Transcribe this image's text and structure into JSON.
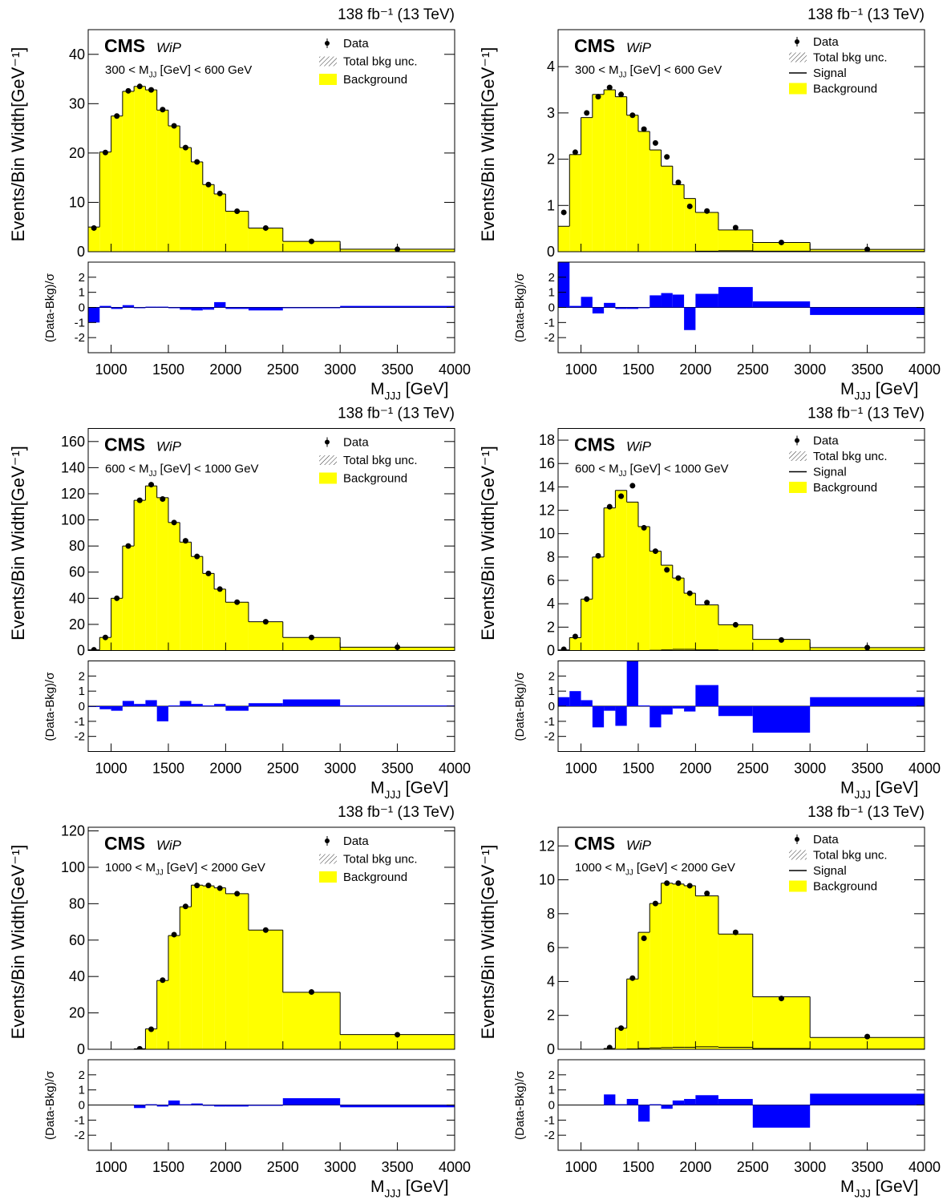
{
  "chart_data": [
    {
      "type": "histogram",
      "title": "CMS",
      "subtitle": "WiP",
      "lumi": "138 fb⁻¹ (13 TeV)",
      "region": {
        "prefix": "300 < M",
        "subscript": "JJ",
        "suffix": " [GeV] < 600 GeV"
      },
      "x_label": {
        "prefix": "M",
        "subscript": "JJJ",
        "suffix": " [GeV]"
      },
      "y_label": "Events/Bin Width[GeV⁻¹]",
      "bins": [
        800,
        900,
        1000,
        1100,
        1200,
        1300,
        1400,
        1500,
        1600,
        1700,
        1800,
        1900,
        2000,
        2200,
        2500,
        3000,
        4000
      ],
      "xlim": [
        800,
        4000
      ],
      "xticks": [
        1000,
        1500,
        2000,
        2500,
        3000,
        3500,
        4000
      ],
      "ylim": [
        0,
        45
      ],
      "yticks": [
        0,
        10,
        20,
        30,
        40
      ],
      "unc_label": "Total bkg unc.",
      "series": [
        {
          "name": "Data",
          "color": "#000000",
          "values": [
            4.8,
            20.1,
            27.5,
            32.6,
            33.5,
            32.8,
            28.8,
            25.5,
            21.1,
            18.2,
            13.6,
            11.8,
            8.2,
            4.8,
            2.1,
            0.5
          ]
        },
        {
          "name": "Background",
          "color": "#ffff00",
          "values": [
            5.0,
            20.2,
            27.5,
            32.5,
            33.5,
            32.8,
            28.7,
            25.5,
            21.1,
            18.2,
            13.6,
            11.7,
            8.2,
            4.8,
            2.1,
            0.5
          ]
        }
      ],
      "pull": {
        "y_label": "(Data-Bkg)/σ",
        "color": "#0000ff",
        "ylim": [
          -3,
          3
        ],
        "yticks": [
          -2,
          -1,
          0,
          1,
          2
        ],
        "values": [
          -1.0,
          0.1,
          -0.1,
          0.15,
          -0.05,
          0.05,
          0.05,
          0.0,
          -0.15,
          -0.2,
          -0.15,
          0.35,
          -0.1,
          -0.2,
          -0.05,
          0.1
        ]
      }
    },
    {
      "type": "histogram",
      "title": "CMS",
      "subtitle": "WiP",
      "lumi": "138 fb⁻¹ (13 TeV)",
      "region": {
        "prefix": "300 < M",
        "subscript": "JJ",
        "suffix": " [GeV] < 600 GeV"
      },
      "x_label": {
        "prefix": "M",
        "subscript": "JJJ",
        "suffix": " [GeV]"
      },
      "y_label": "Events/Bin Width[GeV⁻¹]",
      "bins": [
        800,
        900,
        1000,
        1100,
        1200,
        1300,
        1400,
        1500,
        1600,
        1700,
        1800,
        1900,
        2000,
        2200,
        2500,
        3000,
        4000
      ],
      "xlim": [
        800,
        4000
      ],
      "xticks": [
        1000,
        1500,
        2000,
        2500,
        3000,
        3500,
        4000
      ],
      "ylim": [
        0,
        4.8
      ],
      "yticks": [
        0,
        1,
        2,
        3,
        4
      ],
      "unc_label": "Total bkg unc.",
      "series": [
        {
          "name": "Data",
          "color": "#000000",
          "values": [
            0.85,
            2.15,
            3.0,
            3.35,
            3.55,
            3.4,
            2.95,
            2.65,
            2.35,
            2.05,
            1.5,
            0.98,
            0.88,
            0.52,
            0.2,
            0.05
          ]
        },
        {
          "name": "Background",
          "color": "#ffff00",
          "values": [
            0.55,
            2.1,
            2.9,
            3.4,
            3.5,
            3.35,
            2.95,
            2.6,
            2.2,
            1.85,
            1.45,
            1.15,
            0.85,
            0.47,
            0.2,
            0.05
          ]
        },
        {
          "name": "Signal",
          "color": "#000000",
          "values": [
            0,
            0,
            0,
            0,
            0,
            0,
            0,
            0,
            0,
            0,
            0,
            0,
            0.01,
            0.02,
            0.01,
            0.005
          ]
        }
      ],
      "pull": {
        "y_label": "(Data-Bkg)/σ",
        "color": "#0000ff",
        "ylim": [
          -3,
          3
        ],
        "yticks": [
          -2,
          -1,
          0,
          1,
          2
        ],
        "values": [
          3.5,
          0.1,
          0.7,
          -0.4,
          0.3,
          -0.1,
          -0.1,
          0.0,
          0.8,
          0.95,
          0.85,
          -1.5,
          0.9,
          1.35,
          0.4,
          -0.5
        ]
      }
    },
    {
      "type": "histogram",
      "title": "CMS",
      "subtitle": "WiP",
      "lumi": "138 fb⁻¹ (13 TeV)",
      "region": {
        "prefix": "600 < M",
        "subscript": "JJ",
        "suffix": " [GeV] < 1000 GeV"
      },
      "x_label": {
        "prefix": "M",
        "subscript": "JJJ",
        "suffix": " [GeV]"
      },
      "y_label": "Events/Bin Width[GeV⁻¹]",
      "bins": [
        800,
        900,
        1000,
        1100,
        1200,
        1300,
        1400,
        1500,
        1600,
        1700,
        1800,
        1900,
        2000,
        2200,
        2500,
        3000,
        4000
      ],
      "xlim": [
        800,
        4000
      ],
      "xticks": [
        1000,
        1500,
        2000,
        2500,
        3000,
        3500,
        4000
      ],
      "ylim": [
        0,
        170
      ],
      "yticks": [
        0,
        20,
        40,
        60,
        80,
        100,
        120,
        140,
        160
      ],
      "unc_label": "Total bkg unc.",
      "series": [
        {
          "name": "Data",
          "color": "#000000",
          "values": [
            0.5,
            10,
            40,
            80,
            115,
            127,
            116,
            98,
            84,
            72,
            59,
            47,
            37,
            22,
            10,
            2.5
          ]
        },
        {
          "name": "Background",
          "color": "#ffff00",
          "values": [
            0.5,
            10,
            40,
            80,
            115,
            126,
            117,
            98,
            83,
            72,
            59,
            47,
            37,
            22,
            10,
            2.5
          ]
        }
      ],
      "pull": {
        "y_label": "(Data-Bkg)/σ",
        "color": "#0000ff",
        "ylim": [
          -3,
          3
        ],
        "yticks": [
          -2,
          -1,
          0,
          1,
          2
        ],
        "values": [
          0.0,
          -0.2,
          -0.3,
          0.35,
          0.15,
          0.4,
          -1.0,
          0.05,
          0.35,
          0.15,
          0.05,
          0.15,
          -0.3,
          0.2,
          0.45,
          0.05
        ]
      }
    },
    {
      "type": "histogram",
      "title": "CMS",
      "subtitle": "WiP",
      "lumi": "138 fb⁻¹ (13 TeV)",
      "region": {
        "prefix": "600 < M",
        "subscript": "JJ",
        "suffix": " [GeV] < 1000 GeV"
      },
      "x_label": {
        "prefix": "M",
        "subscript": "JJJ",
        "suffix": " [GeV]"
      },
      "y_label": "Events/Bin Width[GeV⁻¹]",
      "bins": [
        800,
        900,
        1000,
        1100,
        1200,
        1300,
        1400,
        1500,
        1600,
        1700,
        1800,
        1900,
        2000,
        2200,
        2500,
        3000,
        4000
      ],
      "xlim": [
        800,
        4000
      ],
      "xticks": [
        1000,
        1500,
        2000,
        2500,
        3000,
        3500,
        4000
      ],
      "ylim": [
        0,
        19
      ],
      "yticks": [
        0,
        2,
        4,
        6,
        8,
        10,
        12,
        14,
        16,
        18
      ],
      "unc_label": "Total bkg unc.",
      "series": [
        {
          "name": "Data",
          "color": "#000000",
          "values": [
            0.1,
            1.2,
            4.4,
            8.1,
            12.3,
            13.2,
            14.1,
            10.5,
            8.5,
            6.9,
            6.2,
            4.9,
            4.1,
            2.2,
            0.9,
            0.25
          ]
        },
        {
          "name": "Background",
          "color": "#ffff00",
          "values": [
            0.05,
            1.1,
            4.4,
            8.0,
            12.2,
            13.7,
            12.7,
            10.6,
            8.5,
            7.3,
            6.2,
            4.9,
            3.9,
            2.2,
            0.95,
            0.25
          ]
        },
        {
          "name": "Signal",
          "color": "#000000",
          "values": [
            0,
            0,
            0,
            0,
            0,
            0,
            0,
            0,
            0.02,
            0.05,
            0.1,
            0.1,
            0.05,
            0.02,
            0.01,
            0.005
          ]
        }
      ],
      "pull": {
        "y_label": "(Data-Bkg)/σ",
        "color": "#0000ff",
        "ylim": [
          -3,
          3
        ],
        "yticks": [
          -2,
          -1,
          0,
          1,
          2
        ],
        "values": [
          0.6,
          1.0,
          0.4,
          -1.4,
          -0.3,
          -1.3,
          3.5,
          0.05,
          -1.4,
          -0.55,
          -0.15,
          -0.35,
          1.4,
          -0.65,
          -1.75,
          0.6
        ]
      }
    },
    {
      "type": "histogram",
      "title": "CMS",
      "subtitle": "WiP",
      "lumi": "138 fb⁻¹ (13 TeV)",
      "region": {
        "prefix": "1000 < M",
        "subscript": "JJ",
        "suffix": " [GeV] < 2000 GeV"
      },
      "x_label": {
        "prefix": "M",
        "subscript": "JJJ",
        "suffix": " [GeV]"
      },
      "y_label": "Events/Bin Width[GeV⁻¹]",
      "bins": [
        800,
        900,
        1000,
        1100,
        1200,
        1300,
        1400,
        1500,
        1600,
        1700,
        1800,
        1900,
        2000,
        2200,
        2500,
        3000,
        4000
      ],
      "xlim": [
        800,
        4000
      ],
      "xticks": [
        1000,
        1500,
        2000,
        2500,
        3000,
        3500,
        4000
      ],
      "ylim": [
        0,
        122
      ],
      "yticks": [
        0,
        20,
        40,
        60,
        80,
        100,
        120
      ],
      "unc_label": "Total bkg unc.",
      "series": [
        {
          "name": "Data",
          "color": "#000000",
          "values": [
            null,
            null,
            null,
            null,
            0.3,
            11,
            38,
            63,
            78.5,
            90,
            90,
            88.5,
            85.5,
            65.5,
            31.5,
            8
          ]
        },
        {
          "name": "Background",
          "color": "#ffff00",
          "values": [
            0,
            0,
            0,
            0,
            0.3,
            11.2,
            37.8,
            62.5,
            78.3,
            90.2,
            89.8,
            88.7,
            85.5,
            65.5,
            31.3,
            8.1
          ]
        }
      ],
      "pull": {
        "y_label": "(Data-Bkg)/σ",
        "color": "#0000ff",
        "ylim": [
          -3,
          3
        ],
        "yticks": [
          -2,
          -1,
          0,
          1,
          2
        ],
        "values": [
          null,
          null,
          null,
          null,
          -0.2,
          0.05,
          -0.1,
          0.3,
          0.05,
          0.1,
          -0.05,
          -0.1,
          -0.1,
          -0.05,
          0.45,
          -0.15
        ]
      }
    },
    {
      "type": "histogram",
      "title": "CMS",
      "subtitle": "WiP",
      "lumi": "138 fb⁻¹ (13 TeV)",
      "region": {
        "prefix": "1000 < M",
        "subscript": "JJ",
        "suffix": " [GeV] < 2000 GeV"
      },
      "x_label": {
        "prefix": "M",
        "subscript": "JJJ",
        "suffix": " [GeV]"
      },
      "y_label": "Events/Bin Width[GeV⁻¹]",
      "bins": [
        800,
        900,
        1000,
        1100,
        1200,
        1300,
        1400,
        1500,
        1600,
        1700,
        1800,
        1900,
        2000,
        2200,
        2500,
        3000,
        4000
      ],
      "xlim": [
        800,
        4000
      ],
      "xticks": [
        1000,
        1500,
        2000,
        2500,
        3000,
        3500,
        4000
      ],
      "ylim": [
        0,
        13.1
      ],
      "yticks": [
        0,
        2,
        4,
        6,
        8,
        10,
        12
      ],
      "unc_label": "Total bkg unc.",
      "series": [
        {
          "name": "Data",
          "color": "#000000",
          "values": [
            null,
            null,
            null,
            null,
            0.1,
            1.25,
            4.2,
            6.55,
            8.6,
            9.8,
            9.8,
            9.65,
            9.2,
            6.9,
            3.0,
            0.75
          ]
        },
        {
          "name": "Background",
          "color": "#ffff00",
          "values": [
            0,
            0,
            0,
            0,
            0.05,
            1.25,
            4.15,
            6.9,
            8.6,
            9.8,
            9.75,
            9.65,
            9.05,
            6.8,
            3.1,
            0.7
          ]
        },
        {
          "name": "Signal",
          "color": "#000000",
          "values": [
            0,
            0,
            0,
            0,
            0,
            0,
            0.02,
            0.05,
            0.08,
            0.1,
            0.12,
            0.12,
            0.15,
            0.12,
            0.05,
            0.01
          ]
        }
      ],
      "pull": {
        "y_label": "(Data-Bkg)/σ",
        "color": "#0000ff",
        "ylim": [
          -3,
          3
        ],
        "yticks": [
          -2,
          -1,
          0,
          1,
          2
        ],
        "values": [
          null,
          null,
          null,
          null,
          0.7,
          0.05,
          0.4,
          -1.1,
          0.05,
          -0.25,
          0.3,
          0.4,
          0.65,
          0.4,
          -1.5,
          0.75
        ]
      }
    }
  ]
}
